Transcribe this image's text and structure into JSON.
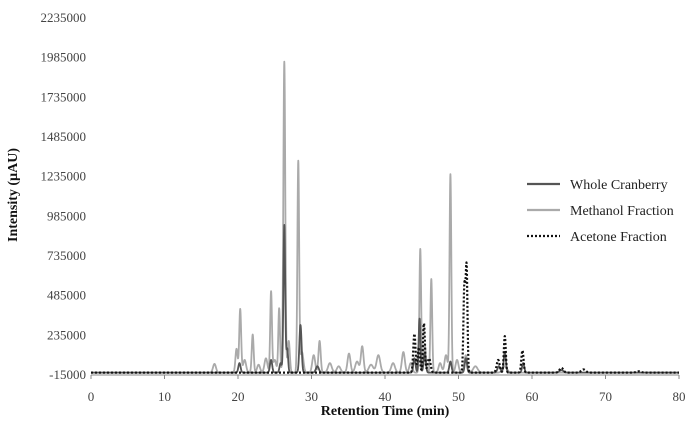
{
  "chart_data": {
    "type": "line",
    "title": "",
    "xlabel": "Retention Time (min)",
    "ylabel": "Intensity (µAU)",
    "xlim": [
      0,
      80
    ],
    "ylim": [
      -15000,
      2235000
    ],
    "x_ticks": [
      0,
      10,
      20,
      30,
      40,
      50,
      60,
      70,
      80
    ],
    "y_ticks": [
      -15000,
      235000,
      485000,
      735000,
      985000,
      1235000,
      1485000,
      1735000,
      1985000,
      2235000
    ],
    "grid": false,
    "legend_position": "right",
    "series": [
      {
        "name": "Whole Cranberry",
        "color": "#555555",
        "style": "solid",
        "peaks": [
          {
            "x": 20.2,
            "y": 60000,
            "w": 0.15
          },
          {
            "x": 24.5,
            "y": 80000,
            "w": 0.15
          },
          {
            "x": 25.8,
            "y": 60000,
            "w": 0.15
          },
          {
            "x": 26.3,
            "y": 930000,
            "w": 0.12
          },
          {
            "x": 26.7,
            "y": 150000,
            "w": 0.12
          },
          {
            "x": 28.5,
            "y": 300000,
            "w": 0.15
          },
          {
            "x": 30.8,
            "y": 40000,
            "w": 0.2
          },
          {
            "x": 44.0,
            "y": 90000,
            "w": 0.15
          },
          {
            "x": 44.7,
            "y": 340000,
            "w": 0.12
          },
          {
            "x": 45.4,
            "y": 120000,
            "w": 0.15
          },
          {
            "x": 48.9,
            "y": 70000,
            "w": 0.15
          },
          {
            "x": 51.0,
            "y": 90000,
            "w": 0.15
          },
          {
            "x": 55.5,
            "y": 40000,
            "w": 0.2
          },
          {
            "x": 56.3,
            "y": 130000,
            "w": 0.15
          },
          {
            "x": 58.8,
            "y": 60000,
            "w": 0.15
          },
          {
            "x": 64.0,
            "y": 15000,
            "w": 0.3
          }
        ]
      },
      {
        "name": "Methanol Fraction",
        "color": "#aaaaaa",
        "style": "solid",
        "peaks": [
          {
            "x": 16.8,
            "y": 55000,
            "w": 0.2
          },
          {
            "x": 19.8,
            "y": 150000,
            "w": 0.15
          },
          {
            "x": 20.3,
            "y": 400000,
            "w": 0.13
          },
          {
            "x": 20.9,
            "y": 80000,
            "w": 0.2
          },
          {
            "x": 22.0,
            "y": 240000,
            "w": 0.13
          },
          {
            "x": 22.8,
            "y": 50000,
            "w": 0.2
          },
          {
            "x": 23.8,
            "y": 90000,
            "w": 0.2
          },
          {
            "x": 24.5,
            "y": 510000,
            "w": 0.12
          },
          {
            "x": 25.0,
            "y": 80000,
            "w": 0.2
          },
          {
            "x": 25.6,
            "y": 405000,
            "w": 0.12
          },
          {
            "x": 26.3,
            "y": 1960000,
            "w": 0.13
          },
          {
            "x": 26.9,
            "y": 200000,
            "w": 0.15
          },
          {
            "x": 28.2,
            "y": 1330000,
            "w": 0.12
          },
          {
            "x": 28.7,
            "y": 130000,
            "w": 0.2
          },
          {
            "x": 30.3,
            "y": 110000,
            "w": 0.2
          },
          {
            "x": 31.1,
            "y": 200000,
            "w": 0.15
          },
          {
            "x": 32.5,
            "y": 60000,
            "w": 0.25
          },
          {
            "x": 33.7,
            "y": 40000,
            "w": 0.25
          },
          {
            "x": 35.1,
            "y": 120000,
            "w": 0.2
          },
          {
            "x": 36.2,
            "y": 70000,
            "w": 0.25
          },
          {
            "x": 36.9,
            "y": 165000,
            "w": 0.18
          },
          {
            "x": 38.1,
            "y": 50000,
            "w": 0.3
          },
          {
            "x": 39.1,
            "y": 110000,
            "w": 0.25
          },
          {
            "x": 41.1,
            "y": 60000,
            "w": 0.25
          },
          {
            "x": 42.5,
            "y": 130000,
            "w": 0.2
          },
          {
            "x": 43.5,
            "y": 60000,
            "w": 0.2
          },
          {
            "x": 44.8,
            "y": 780000,
            "w": 0.12
          },
          {
            "x": 45.4,
            "y": 180000,
            "w": 0.15
          },
          {
            "x": 46.3,
            "y": 590000,
            "w": 0.12
          },
          {
            "x": 47.5,
            "y": 60000,
            "w": 0.2
          },
          {
            "x": 48.3,
            "y": 110000,
            "w": 0.2
          },
          {
            "x": 48.9,
            "y": 1250000,
            "w": 0.12
          },
          {
            "x": 49.8,
            "y": 80000,
            "w": 0.2
          },
          {
            "x": 51.0,
            "y": 110000,
            "w": 0.2
          },
          {
            "x": 52.3,
            "y": 40000,
            "w": 0.3
          },
          {
            "x": 56.3,
            "y": 40000,
            "w": 0.3
          }
        ]
      },
      {
        "name": "Acetone Fraction",
        "color": "#111111",
        "style": "dotted",
        "peaks": [
          {
            "x": 44.0,
            "y": 245000,
            "w": 0.15
          },
          {
            "x": 44.6,
            "y": 160000,
            "w": 0.15
          },
          {
            "x": 45.3,
            "y": 310000,
            "w": 0.13
          },
          {
            "x": 46.0,
            "y": 90000,
            "w": 0.2
          },
          {
            "x": 50.8,
            "y": 540000,
            "w": 0.13
          },
          {
            "x": 51.1,
            "y": 650000,
            "w": 0.12
          },
          {
            "x": 55.4,
            "y": 80000,
            "w": 0.2
          },
          {
            "x": 56.3,
            "y": 230000,
            "w": 0.13
          },
          {
            "x": 58.7,
            "y": 140000,
            "w": 0.15
          },
          {
            "x": 64.0,
            "y": 30000,
            "w": 0.25
          },
          {
            "x": 67.0,
            "y": 20000,
            "w": 0.3
          },
          {
            "x": 74.5,
            "y": 8000,
            "w": 0.3
          }
        ]
      }
    ]
  }
}
